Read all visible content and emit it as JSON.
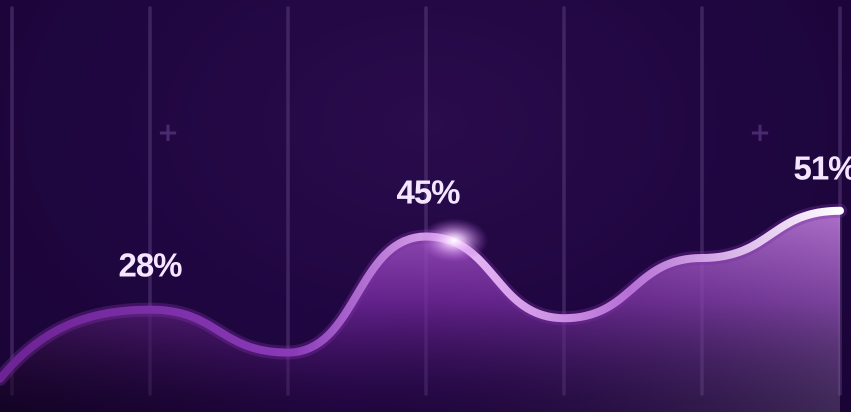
{
  "chart_data": {
    "type": "area",
    "categories": [
      "",
      "",
      "",
      "",
      "",
      "",
      ""
    ],
    "values": [
      17,
      28,
      18,
      45,
      26,
      40,
      51
    ],
    "data_labels": [
      {
        "index": 1,
        "text": "28%"
      },
      {
        "index": 3,
        "text": "45%"
      },
      {
        "index": 6,
        "text": "51%"
      }
    ],
    "ylim": [
      0,
      100
    ],
    "grid": "vertical",
    "title": "",
    "xlabel": "",
    "ylabel": ""
  },
  "decorations": {
    "plus_markers": [
      "+",
      "+"
    ]
  },
  "colors": {
    "background": "#22053f",
    "gridline": "#5a3d7a",
    "line_dark": "#7a2ea3",
    "line_light": "#f3d9ff",
    "label": "#f4e6ff"
  }
}
